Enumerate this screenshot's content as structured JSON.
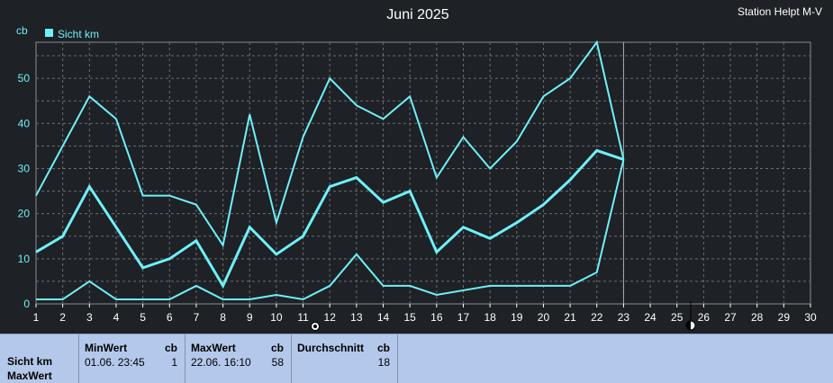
{
  "header": {
    "title": "Juni 2025",
    "station": "Station Helpt M-V",
    "unit": "cb"
  },
  "legend": {
    "label": "Sicht km"
  },
  "colors": {
    "line": "#6ff0f8",
    "background": "#1e2125",
    "plot_bg": "#1e2125",
    "grid": "#6a6d71",
    "axis_text": "#ffffff",
    "tick_text_y": "#6ff0f8",
    "table_bg": "#b3c8ea"
  },
  "icons": {
    "marker_day_11": "moon-phase-icon",
    "marker_day_25": "moon-phase-icon"
  },
  "chart_data": {
    "type": "line",
    "title": "Juni 2025",
    "ylabel": "cb",
    "x": [
      1,
      2,
      3,
      4,
      5,
      6,
      7,
      8,
      9,
      10,
      11,
      12,
      13,
      14,
      15,
      16,
      17,
      18,
      19,
      20,
      21,
      22,
      23
    ],
    "x_ticks": [
      1,
      2,
      3,
      4,
      5,
      6,
      7,
      8,
      9,
      10,
      11,
      12,
      13,
      14,
      15,
      16,
      17,
      18,
      19,
      20,
      21,
      22,
      23,
      24,
      25,
      26,
      27,
      28,
      29,
      30
    ],
    "xlim": [
      1,
      30
    ],
    "ylim": [
      0,
      58
    ],
    "y_ticks": [
      0,
      10,
      20,
      30,
      40,
      50
    ],
    "grid": true,
    "legend_position": "top-left",
    "series": [
      {
        "name": "Sicht km",
        "role": "max",
        "values": [
          24,
          35,
          46,
          41,
          24,
          24,
          22,
          13,
          42,
          18,
          37,
          50,
          44,
          41,
          46,
          28,
          37,
          30,
          36,
          46,
          50,
          58,
          32
        ]
      },
      {
        "role": "mean",
        "values": [
          11.5,
          15,
          26,
          17,
          8,
          10,
          14,
          4,
          17,
          11,
          15,
          26,
          28,
          22.5,
          25,
          11.5,
          17,
          14.5,
          18,
          22,
          27.5,
          34,
          32
        ]
      },
      {
        "role": "min",
        "values": [
          1,
          1,
          5,
          1,
          1,
          1,
          4,
          1,
          1,
          2,
          1,
          4,
          11,
          4,
          4,
          2,
          3,
          4,
          4,
          4,
          4,
          7,
          32
        ]
      }
    ],
    "current_day": 23
  },
  "table": {
    "row_label_1": "Sicht km",
    "row_label_2": "MaxWert",
    "columns": [
      {
        "header": "MinWert",
        "unit": "cb",
        "date": "01.06.  23:45",
        "value": "1"
      },
      {
        "header": "MaxWert",
        "unit": "cb",
        "date": "22.06.  16:10",
        "value": "58"
      },
      {
        "header": "Durchschnitt",
        "unit": "cb",
        "date": "",
        "value": "18"
      }
    ]
  }
}
